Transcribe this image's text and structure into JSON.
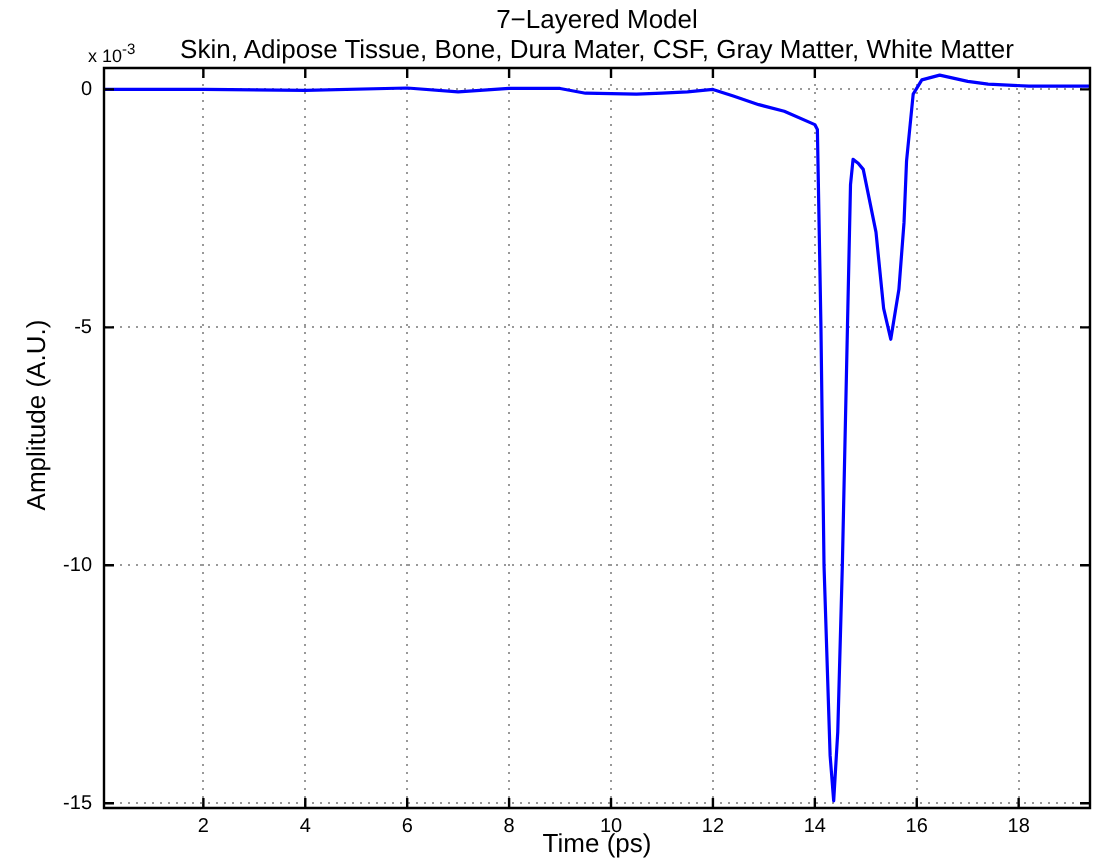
{
  "chart_data": {
    "type": "line",
    "title": "7−Layered Model",
    "subtitle": "Skin, Adipose Tissue, Bone, Dura Mater, CSF, Gray Matter, White Matter",
    "xlabel": "Time (ps)",
    "ylabel": "Amplitude (A.U.)",
    "annotations": [
      "x 10$^{-3}$"
    ],
    "xlim": [
      0.05,
      19.4
    ],
    "xticks": [
      2,
      4,
      6,
      8,
      10,
      12,
      14,
      16,
      18
    ],
    "ylim": [
      -15.1,
      0.45
    ],
    "yticks": [
      -15,
      -10,
      -5,
      0
    ],
    "grid": true,
    "legend": false,
    "line_style": "solid",
    "marker": "none",
    "series": [
      {
        "color": "#0000ff",
        "x": [
          0.05,
          2,
          4,
          6,
          7,
          8,
          9,
          9.5,
          10.5,
          11,
          11.5,
          12,
          12.4,
          12.9,
          13.4,
          14.0,
          14.05,
          14.12,
          14.18,
          14.3,
          14.37,
          14.45,
          14.54,
          14.64,
          14.7,
          14.75,
          14.85,
          14.95,
          15.2,
          15.35,
          15.49,
          15.65,
          15.75,
          15.8,
          15.93,
          16.1,
          16.45,
          17.0,
          17.4,
          18.2,
          19.4
        ],
        "values": [
          0,
          0,
          -0.02,
          0.03,
          -0.05,
          0.02,
          0.02,
          -0.08,
          -0.1,
          -0.08,
          -0.05,
          0,
          -0.14,
          -0.32,
          -0.46,
          -0.74,
          -0.84,
          -5,
          -10,
          -14,
          -14.95,
          -13.5,
          -10,
          -5,
          -2,
          -1.47,
          -1.55,
          -1.68,
          -3,
          -4.6,
          -5.25,
          -4.2,
          -2.8,
          -1.5,
          -0.1,
          0.2,
          0.3,
          0.17,
          0.11,
          0.07,
          0.07
        ]
      }
    ]
  }
}
